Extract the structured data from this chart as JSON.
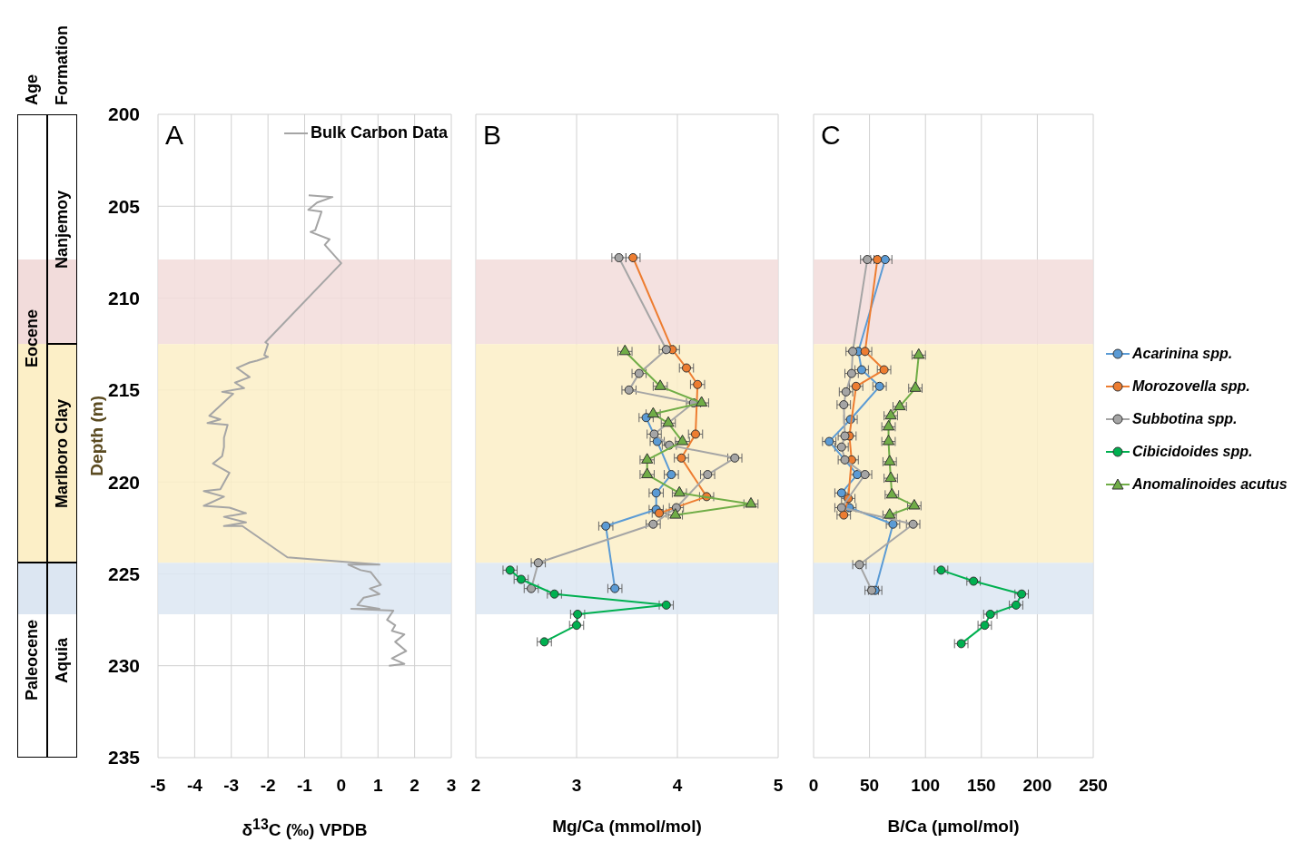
{
  "chart_data": [
    {
      "type": "line",
      "title": "A",
      "xlabel": "δ$^{13}$C (‰) VPDB",
      "ylabel": "Depth (m)",
      "xlim": [
        -5,
        3
      ],
      "xticks": [
        -5,
        -4,
        -3,
        -2,
        -1,
        0,
        1,
        2,
        3
      ],
      "ylim": [
        235,
        200
      ],
      "yticks": [
        200,
        205,
        210,
        215,
        220,
        225,
        230,
        235
      ],
      "grid": true,
      "legend": "top right",
      "marker": "none",
      "bands": [
        {
          "axis": "y",
          "from": 207.9,
          "to": 212.5,
          "color": "#f2dcdb"
        },
        {
          "axis": "y",
          "from": 212.5,
          "to": 224.4,
          "color": "#fcefc7"
        },
        {
          "axis": "y",
          "from": 224.4,
          "to": 227.2,
          "color": "#dce6f2"
        }
      ],
      "annotations": [
        "Age",
        "Formation",
        "Eocene",
        "Paleocene",
        "Nanjemoy",
        "Marlboro Clay",
        "Aquia"
      ],
      "series": [
        {
          "name": "Bulk Carbon Data",
          "color": "#a5a5a5",
          "x": [
            -0.89,
            -0.24,
            -0.66,
            -0.9,
            -0.54,
            -0.71,
            -0.84,
            -0.32,
            -0.45,
            0,
            -2.07,
            -2.0,
            -2.1,
            -2.0,
            -2.3,
            -2.5,
            -2.85,
            -2.5,
            -2.9,
            -2.65,
            -3.25,
            -2.95,
            -3.6,
            -3.3,
            -3.65,
            -3.1,
            -3.2,
            -3.2,
            -3.25,
            -3.5,
            -3.05,
            -3.3,
            -3.75,
            -3.2,
            -3.75,
            -3.05,
            -2.6,
            -3.2,
            -2.6,
            -3.2,
            -2.7,
            -1.47,
            1.04,
            0.19,
            0.53,
            0.8,
            1.08,
            0.78,
            1.04,
            0.61,
            0.44,
            1.04,
            0.27,
            1.42,
            1.25,
            1.47,
            1.38,
            1.72,
            1.47,
            1.77,
            1.38,
            1.72,
            1.3
          ],
          "values": [
            204.4,
            204.5,
            204.8,
            205.2,
            205.3,
            206.3,
            206.4,
            206.8,
            207.1,
            208.1,
            212.4,
            212.5,
            213.1,
            213.2,
            213.4,
            213.5,
            213.8,
            214.3,
            214.6,
            214.9,
            215.1,
            215.2,
            216.4,
            216.6,
            216.8,
            216.9,
            217.6,
            218.1,
            218.6,
            219.0,
            219.5,
            220.4,
            220.5,
            220.8,
            221.3,
            221.4,
            221.7,
            221.9,
            222.2,
            222.4,
            222.4,
            224.1,
            224.5,
            224.5,
            224.8,
            224.9,
            225.6,
            225.8,
            226.1,
            226.3,
            226.7,
            226.9,
            226.9,
            227.0,
            227.5,
            227.8,
            228.1,
            228.3,
            228.7,
            229.2,
            229.6,
            229.9,
            230.0
          ]
        }
      ]
    },
    {
      "type": "line",
      "title": "B",
      "xlabel": "Mg/Ca (mmol/mol)",
      "xlim": [
        2,
        5
      ],
      "xticks": [
        2,
        3,
        4,
        5
      ],
      "ylim": [
        235,
        200
      ],
      "yticks": [
        200,
        205,
        210,
        215,
        220,
        225,
        230,
        235
      ],
      "tick_labels": "x",
      "grid": true,
      "marker": "circle",
      "bands": [
        {
          "axis": "y",
          "from": 207.9,
          "to": 212.5,
          "color": "#f2dcdb"
        },
        {
          "axis": "y",
          "from": 212.5,
          "to": 224.4,
          "color": "#fcefc7"
        },
        {
          "axis": "y",
          "from": 224.4,
          "to": 227.2,
          "color": "#dce6f2"
        }
      ],
      "series": [
        {
          "color": "#5b9bd5",
          "x": [
            3.69,
            3.8,
            3.94,
            3.79,
            3.79,
            3.29,
            3.38
          ],
          "values": [
            216.5,
            217.8,
            219.6,
            220.6,
            221.5,
            222.4,
            225.8
          ],
          "xerrors": [
            0.07,
            0.07,
            0.07,
            0.07,
            0.07,
            0.07,
            0.07
          ]
        },
        {
          "color": "#ed7d31",
          "x": [
            3.56,
            3.95,
            4.09,
            4.2,
            4.18,
            4.04,
            4.29,
            3.82
          ],
          "values": [
            207.8,
            212.8,
            213.8,
            214.7,
            217.4,
            218.7,
            220.8,
            221.7
          ],
          "xerrors": [
            0.07,
            0.07,
            0.07,
            0.07,
            0.07,
            0.07,
            0.07,
            0.07
          ]
        },
        {
          "color": "#a5a5a5",
          "x": [
            3.42,
            3.89,
            3.62,
            3.52,
            4.16,
            3.77,
            3.92,
            4.57,
            4.3,
            3.99,
            3.76,
            2.62,
            2.55
          ],
          "values": [
            207.8,
            212.8,
            214.1,
            215.0,
            215.7,
            217.4,
            218.0,
            218.7,
            219.6,
            221.4,
            222.3,
            224.4,
            225.8
          ],
          "xerrors": [
            0.07,
            0.07,
            0.07,
            0.07,
            0.07,
            0.07,
            0.07,
            0.07,
            0.07,
            0.07,
            0.07,
            0.07,
            0.07
          ]
        },
        {
          "color": "#00b050",
          "x": [
            2.34,
            2.45,
            2.78,
            3.89,
            3.01,
            3.0,
            2.68
          ],
          "values": [
            224.8,
            225.3,
            226.1,
            226.7,
            227.2,
            227.8,
            228.7
          ],
          "xerrors": [
            0.07,
            0.07,
            0.07,
            0.07,
            0.07,
            0.07,
            0.07
          ]
        },
        {
          "color": "#70ad47",
          "marker": "triangle",
          "x": [
            3.48,
            3.83,
            4.24,
            3.76,
            3.91,
            4.05,
            3.7,
            3.7,
            4.02,
            4.73,
            3.98
          ],
          "values": [
            212.9,
            214.8,
            215.7,
            216.3,
            216.8,
            217.8,
            218.8,
            219.6,
            220.6,
            221.2,
            221.8
          ],
          "xerrors": [
            0.07,
            0.07,
            0.07,
            0.07,
            0.07,
            0.07,
            0.07,
            0.07,
            0.07,
            0.07,
            0.07
          ]
        }
      ]
    },
    {
      "type": "line",
      "title": "C",
      "xlabel": "B/Ca (µmol/mol)",
      "xlim": [
        0,
        250
      ],
      "xticks": [
        0,
        50,
        100,
        150,
        200,
        250
      ],
      "ylim": [
        235,
        200
      ],
      "yticks": [
        200,
        205,
        210,
        215,
        220,
        225,
        230,
        235
      ],
      "tick_labels": "x",
      "grid": true,
      "marker": "circle",
      "legend": "right",
      "bands": [
        {
          "axis": "y",
          "from": 207.9,
          "to": 212.5,
          "color": "#f2dcdb"
        },
        {
          "axis": "y",
          "from": 212.5,
          "to": 224.4,
          "color": "#fcefc7"
        },
        {
          "axis": "y",
          "from": 224.4,
          "to": 227.2,
          "color": "#dce6f2"
        }
      ],
      "series": [
        {
          "name": "Acarinina spp.",
          "color": "#5b9bd5",
          "x": [
            64,
            40,
            43,
            59,
            33,
            14,
            39,
            25,
            32,
            71,
            55
          ],
          "values": [
            207.9,
            212.9,
            213.9,
            214.8,
            216.6,
            217.8,
            219.6,
            220.6,
            221.4,
            222.3,
            225.9
          ],
          "xerrors": [
            6,
            6,
            6,
            6,
            6,
            6,
            6,
            6,
            6,
            6,
            6
          ]
        },
        {
          "name": "Morozovella spp.",
          "color": "#ed7d31",
          "x": [
            57,
            46,
            63,
            38,
            32,
            34,
            31,
            27
          ],
          "values": [
            207.9,
            212.9,
            213.9,
            214.8,
            217.5,
            218.8,
            220.9,
            221.8
          ],
          "xerrors": [
            6,
            6,
            6,
            6,
            6,
            6,
            6,
            6
          ]
        },
        {
          "name": "Subbotina spp.",
          "color": "#a5a5a5",
          "x": [
            48,
            35,
            34,
            29,
            27,
            28,
            25,
            28,
            46,
            25,
            89,
            41,
            52
          ],
          "values": [
            207.9,
            212.9,
            214.1,
            215.1,
            215.8,
            217.5,
            218.1,
            218.8,
            219.6,
            221.4,
            222.3,
            224.5,
            225.9
          ],
          "xerrors": [
            6,
            6,
            6,
            6,
            6,
            6,
            6,
            6,
            6,
            6,
            6,
            6,
            6
          ]
        },
        {
          "name": "Cibicidoides spp.",
          "color": "#00b050",
          "x": [
            114,
            143,
            186,
            181,
            158,
            153,
            132
          ],
          "values": [
            224.8,
            225.4,
            226.1,
            226.7,
            227.2,
            227.8,
            228.8
          ],
          "xerrors": [
            6,
            6,
            6,
            6,
            6,
            6,
            6
          ]
        },
        {
          "name": "Anomalinoides acutus",
          "color": "#70ad47",
          "marker": "triangle",
          "x": [
            94,
            91,
            77,
            69,
            67,
            67,
            68,
            69,
            70,
            90,
            68
          ],
          "values": [
            213.1,
            214.9,
            215.9,
            216.4,
            217.0,
            217.8,
            218.9,
            219.8,
            220.7,
            221.3,
            221.8
          ],
          "xerrors": [
            6,
            6,
            6,
            6,
            6,
            6,
            6,
            6,
            6,
            6,
            6
          ]
        }
      ]
    }
  ]
}
